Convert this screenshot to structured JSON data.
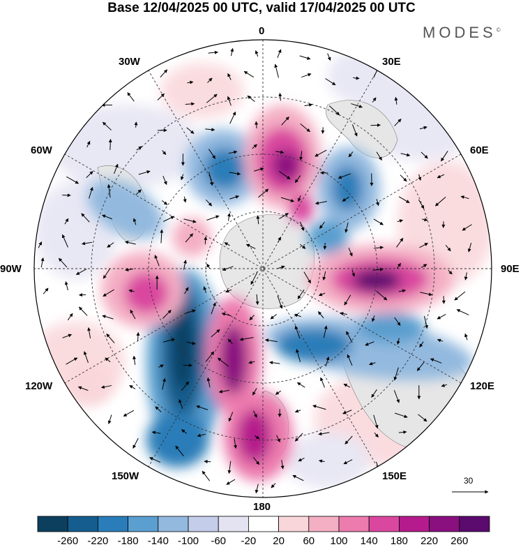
{
  "title": "Base 12/04/2025 00 UTC, valid 17/04/2025 00 UTC",
  "brand": "MODES",
  "brand_mark": "©",
  "longitude_labels": {
    "top": "0",
    "bottom": "180",
    "e30": "30E",
    "e60": "60E",
    "e90": "90E",
    "e120": "120E",
    "e150": "150E",
    "w30": "30W",
    "w60": "60W",
    "w90": "90W",
    "w120": "120W",
    "w150": "150W"
  },
  "wind_scale": "30",
  "colorbar": {
    "colors": [
      "#0c3e5e",
      "#145d8e",
      "#2a7db8",
      "#5a9fcf",
      "#93b9df",
      "#c4cde9",
      "#e4e3f2",
      "#ffffff",
      "#f9d6da",
      "#f4afc4",
      "#ec7cae",
      "#d9479f",
      "#b51b8c",
      "#8a0f7f",
      "#5b0a6e"
    ],
    "ticks": [
      "-260",
      "-220",
      "-180",
      "-140",
      "-100",
      "-60",
      "-20",
      "20",
      "60",
      "100",
      "140",
      "180",
      "220",
      "260"
    ]
  }
}
